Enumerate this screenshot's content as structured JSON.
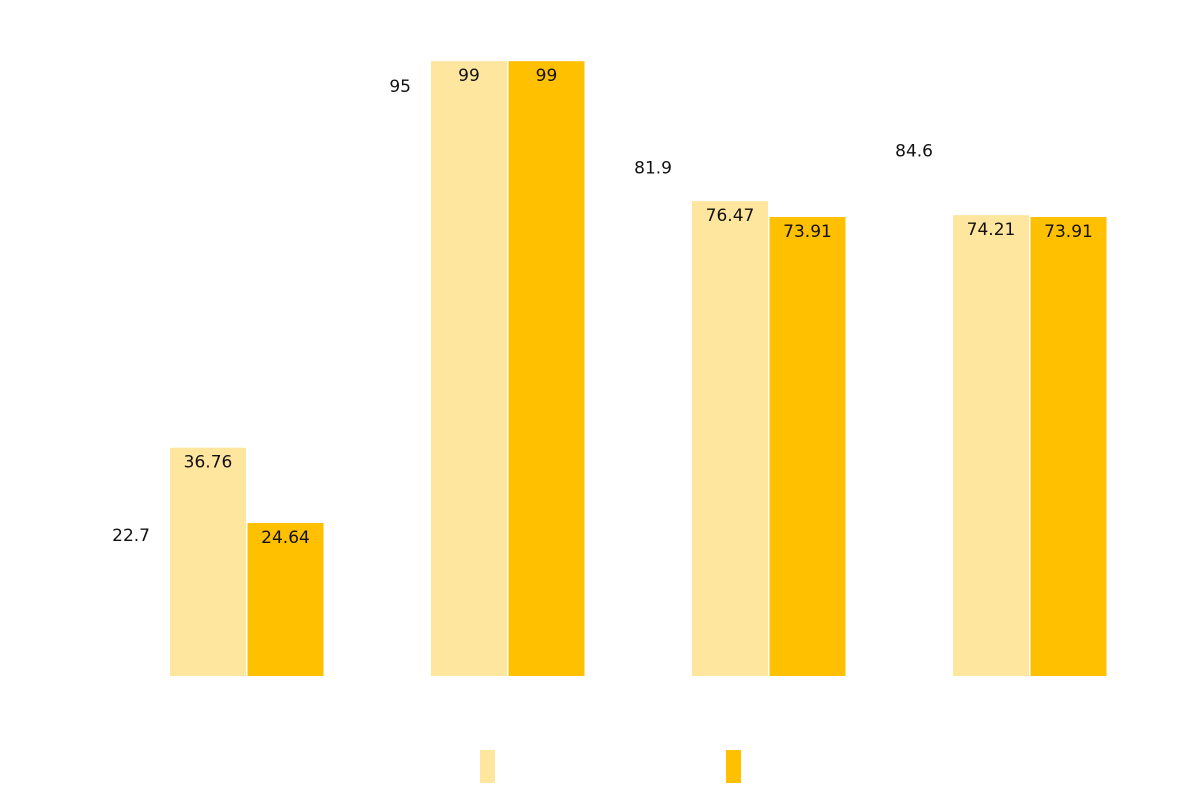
{
  "chart_data": {
    "type": "bar",
    "categories": [
      "",
      "",
      "",
      ""
    ],
    "series": [
      {
        "values": [
          36.76,
          99,
          76.47,
          74.21
        ],
        "color": "#FFE69E"
      },
      {
        "values": [
          24.64,
          99,
          73.91,
          73.91
        ],
        "color": "#FFC000"
      }
    ],
    "extra_labels": [
      "22.7",
      "95",
      "81.9",
      "84.6"
    ],
    "ylim": [
      0,
      100
    ],
    "grid": false,
    "legend": "bottom"
  }
}
